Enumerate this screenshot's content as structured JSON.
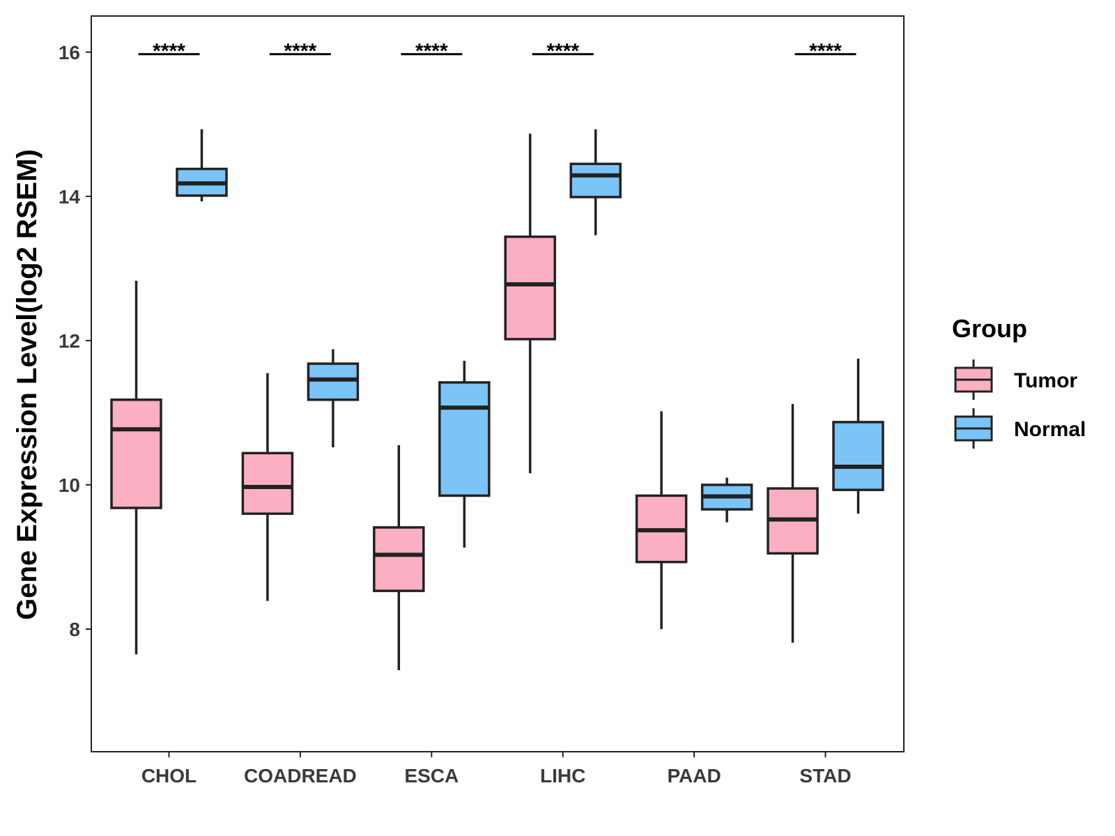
{
  "chart_data": {
    "type": "boxplot",
    "ylabel": "Gene Expression Level(log2 RSEM)",
    "xlabel": "",
    "ylim": [
      6.3,
      16.5
    ],
    "yticks": [
      8,
      10,
      12,
      14,
      16
    ],
    "categories": [
      "CHOL",
      "COADREAD",
      "ESCA",
      "LIHC",
      "PAAD",
      "STAD"
    ],
    "legend": {
      "title": "Group",
      "position": "right",
      "entries": [
        "Tumor",
        "Normal"
      ]
    },
    "colors": {
      "Tumor": "#fbafc3",
      "Normal": "#7ac4f8",
      "outline": "#222222",
      "sig": "#000000"
    },
    "series": [
      {
        "name": "Tumor",
        "boxes": [
          {
            "category": "CHOL",
            "min": 7.65,
            "q1": 9.68,
            "median": 10.77,
            "q3": 11.18,
            "max": 12.83
          },
          {
            "category": "COADREAD",
            "min": 8.39,
            "q1": 9.6,
            "median": 9.97,
            "q3": 10.44,
            "max": 11.55
          },
          {
            "category": "ESCA",
            "min": 7.43,
            "q1": 8.53,
            "median": 9.03,
            "q3": 9.41,
            "max": 10.55
          },
          {
            "category": "LIHC",
            "min": 10.16,
            "q1": 12.02,
            "median": 12.78,
            "q3": 13.44,
            "max": 14.87
          },
          {
            "category": "PAAD",
            "min": 8.0,
            "q1": 8.93,
            "median": 9.37,
            "q3": 9.85,
            "max": 11.02
          },
          {
            "category": "STAD",
            "min": 7.81,
            "q1": 9.05,
            "median": 9.52,
            "q3": 9.95,
            "max": 11.12
          }
        ]
      },
      {
        "name": "Normal",
        "boxes": [
          {
            "category": "CHOL",
            "min": 13.93,
            "q1": 14.01,
            "median": 14.18,
            "q3": 14.38,
            "max": 14.93
          },
          {
            "category": "COADREAD",
            "min": 10.52,
            "q1": 11.18,
            "median": 11.46,
            "q3": 11.68,
            "max": 11.88
          },
          {
            "category": "ESCA",
            "min": 9.13,
            "q1": 9.85,
            "median": 11.07,
            "q3": 11.42,
            "max": 11.72
          },
          {
            "category": "LIHC",
            "min": 13.46,
            "q1": 13.99,
            "median": 14.29,
            "q3": 14.45,
            "max": 14.93
          },
          {
            "category": "PAAD",
            "min": 9.48,
            "q1": 9.66,
            "median": 9.84,
            "q3": 10.0,
            "max": 10.1
          },
          {
            "category": "STAD",
            "min": 9.6,
            "q1": 9.93,
            "median": 10.25,
            "q3": 10.87,
            "max": 11.75
          }
        ]
      }
    ],
    "significance": [
      {
        "category": "CHOL",
        "label": "****"
      },
      {
        "category": "COADREAD",
        "label": "****"
      },
      {
        "category": "ESCA",
        "label": "****"
      },
      {
        "category": "LIHC",
        "label": "****"
      },
      {
        "category": "PAAD",
        "label": ""
      },
      {
        "category": "STAD",
        "label": "****"
      }
    ],
    "significance_level": 16
  }
}
